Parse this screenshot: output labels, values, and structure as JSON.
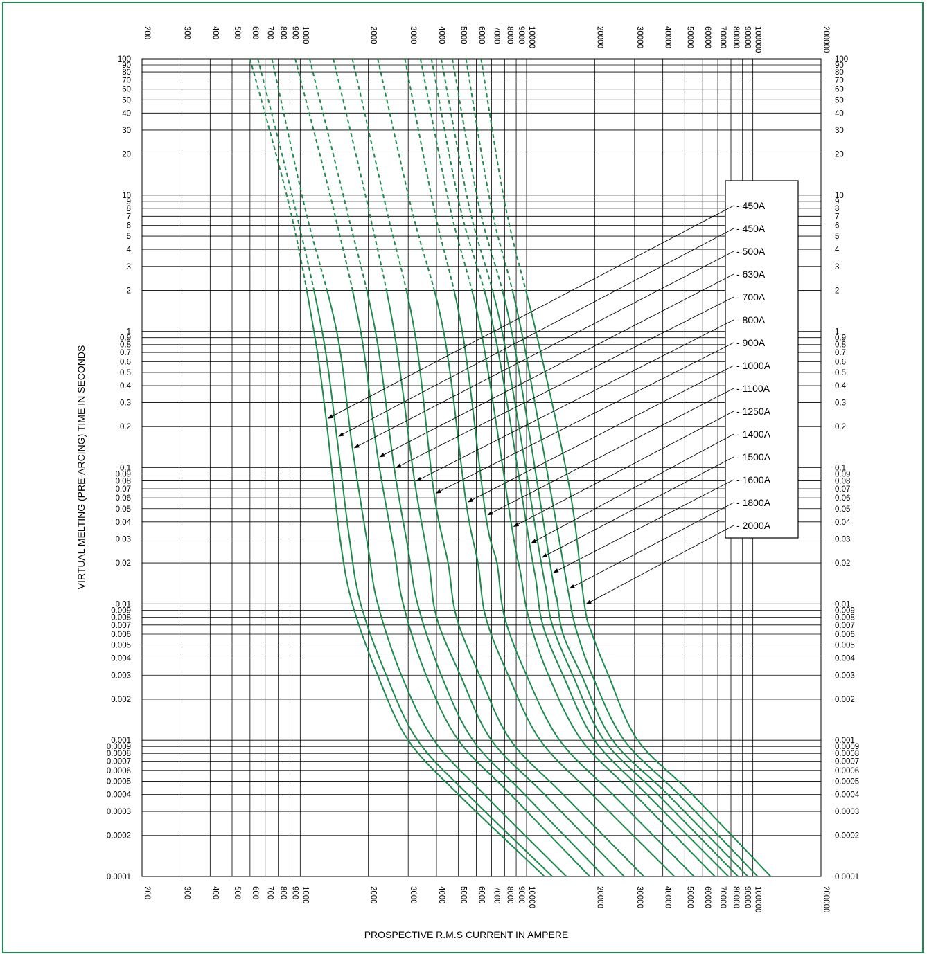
{
  "chart_data": {
    "type": "line",
    "title": "",
    "xlabel": "PROSPECTIVE R.M.S CURRENT IN AMPERE",
    "ylabel": "VIRTUAL MELTING (PRE-ARCING) TIME IN SECONDS",
    "x_scale": "log",
    "y_scale": "log",
    "xlim": [
      200,
      200000
    ],
    "ylim": [
      0.0001,
      100
    ],
    "grid": true,
    "legend_position": "right (boxed, with leader arrows to each curve)",
    "line_color": "#1e8a4e",
    "x_tick_labels": [
      "200",
      "300",
      "400",
      "500",
      "600",
      "700",
      "800",
      "900",
      "1000",
      "2000",
      "3000",
      "4000",
      "5000",
      "6000",
      "7000",
      "8000",
      "9000",
      "10000",
      "20000",
      "30000",
      "40000",
      "50000",
      "60000",
      "70000",
      "80000",
      "90000",
      "100000",
      "200000"
    ],
    "y_tick_labels": [
      "100",
      "90",
      "80",
      "70",
      "60",
      "50",
      "40",
      "30",
      "20",
      "10",
      "9",
      "8",
      "7",
      "6",
      "5",
      "4",
      "3",
      "2",
      "1",
      "0.9",
      "0.8",
      "0.7",
      "0.6",
      "0.5",
      "0.4",
      "0.3",
      "0.2",
      "0.1",
      "0.09",
      "0.08",
      "0.07",
      "0.06",
      "0.05",
      "0.04",
      "0.03",
      "0.02",
      "0.01",
      "0.009",
      "0.008",
      "0.007",
      "0.006",
      "0.005",
      "0.004",
      "0.003",
      "0.002",
      "0.001",
      "0.0009",
      "0.0008",
      "0.0007",
      "0.0006",
      "0.0005",
      "0.0004",
      "0.0003",
      "0.0002",
      "0.0001"
    ],
    "note": "Segments above 2 s are drawn dashed",
    "series": [
      {
        "name": "450A",
        "arrow_at": [
          1300,
          0.23
        ],
        "points": [
          [
            600,
            100
          ],
          [
            900,
            8
          ],
          [
            1150,
            1
          ],
          [
            1300,
            0.23
          ],
          [
            1500,
            0.03
          ],
          [
            1700,
            0.01
          ],
          [
            2200,
            0.003
          ],
          [
            3000,
            0.001
          ],
          [
            5000,
            0.0004
          ],
          [
            12000,
            0.0001
          ]
        ]
      },
      {
        "name": "450A",
        "arrow_at": [
          1450,
          0.17
        ],
        "points": [
          [
            650,
            100
          ],
          [
            950,
            8
          ],
          [
            1250,
            1
          ],
          [
            1450,
            0.17
          ],
          [
            1650,
            0.03
          ],
          [
            1850,
            0.01
          ],
          [
            2400,
            0.003
          ],
          [
            3300,
            0.001
          ],
          [
            5500,
            0.0004
          ],
          [
            13000,
            0.0001
          ]
        ]
      },
      {
        "name": "500A",
        "arrow_at": [
          1700,
          0.14
        ],
        "points": [
          [
            750,
            100
          ],
          [
            1050,
            8
          ],
          [
            1450,
            1
          ],
          [
            1700,
            0.14
          ],
          [
            2000,
            0.025
          ],
          [
            2200,
            0.01
          ],
          [
            2800,
            0.003
          ],
          [
            3900,
            0.001
          ],
          [
            6500,
            0.0004
          ],
          [
            15000,
            0.0001
          ]
        ]
      },
      {
        "name": "630A",
        "arrow_at": [
          2200,
          0.12
        ],
        "points": [
          [
            950,
            100
          ],
          [
            1400,
            8
          ],
          [
            1850,
            1
          ],
          [
            2200,
            0.12
          ],
          [
            2600,
            0.025
          ],
          [
            2850,
            0.01
          ],
          [
            3600,
            0.003
          ],
          [
            5000,
            0.001
          ],
          [
            8500,
            0.0004
          ],
          [
            19000,
            0.0001
          ]
        ]
      },
      {
        "name": "700A",
        "arrow_at": [
          2600,
          0.1
        ],
        "points": [
          [
            1100,
            100
          ],
          [
            1600,
            8
          ],
          [
            2150,
            1
          ],
          [
            2600,
            0.1
          ],
          [
            3000,
            0.025
          ],
          [
            3300,
            0.01
          ],
          [
            4200,
            0.003
          ],
          [
            5800,
            0.001
          ],
          [
            9800,
            0.0004
          ],
          [
            22000,
            0.0001
          ]
        ]
      },
      {
        "name": "800A",
        "arrow_at": [
          3200,
          0.08
        ],
        "points": [
          [
            1400,
            100
          ],
          [
            2000,
            8
          ],
          [
            2600,
            1
          ],
          [
            3200,
            0.08
          ],
          [
            3700,
            0.02
          ],
          [
            4000,
            0.008
          ],
          [
            5100,
            0.003
          ],
          [
            7000,
            0.001
          ],
          [
            12000,
            0.0004
          ],
          [
            27000,
            0.0001
          ]
        ]
      },
      {
        "name": "900A",
        "arrow_at": [
          3900,
          0.065
        ],
        "points": [
          [
            1700,
            100
          ],
          [
            2400,
            8
          ],
          [
            3200,
            1
          ],
          [
            3900,
            0.065
          ],
          [
            4500,
            0.02
          ],
          [
            4900,
            0.008
          ],
          [
            6200,
            0.003
          ],
          [
            8500,
            0.001
          ],
          [
            14500,
            0.0004
          ],
          [
            33000,
            0.0001
          ]
        ]
      },
      {
        "name": "1000A",
        "arrow_at": [
          5400,
          0.056
        ],
        "points": [
          [
            2200,
            100
          ],
          [
            3100,
            8
          ],
          [
            4300,
            1
          ],
          [
            5400,
            0.056
          ],
          [
            6100,
            0.02
          ],
          [
            6600,
            0.008
          ],
          [
            8300,
            0.003
          ],
          [
            11500,
            0.001
          ],
          [
            19500,
            0.0004
          ],
          [
            45000,
            0.0001
          ]
        ]
      },
      {
        "name": "1100A",
        "arrow_at": [
          6600,
          0.045
        ],
        "points": [
          [
            2900,
            100
          ],
          [
            3900,
            8
          ],
          [
            5200,
            1
          ],
          [
            6600,
            0.045
          ],
          [
            7400,
            0.02
          ],
          [
            8000,
            0.008
          ],
          [
            10000,
            0.003
          ],
          [
            14000,
            0.001
          ],
          [
            24000,
            0.0004
          ],
          [
            55000,
            0.0001
          ]
        ]
      },
      {
        "name": "1250A",
        "arrow_at": [
          8600,
          0.037
        ],
        "points": [
          [
            3400,
            100
          ],
          [
            4600,
            8
          ],
          [
            6300,
            1
          ],
          [
            8600,
            0.037
          ],
          [
            9400,
            0.017
          ],
          [
            10200,
            0.008
          ],
          [
            12500,
            0.003
          ],
          [
            17500,
            0.001
          ],
          [
            30000,
            0.0004
          ],
          [
            68000,
            0.0001
          ]
        ]
      },
      {
        "name": "1400A",
        "arrow_at": [
          10300,
          0.028
        ],
        "points": [
          [
            3800,
            100
          ],
          [
            5100,
            8
          ],
          [
            7200,
            1
          ],
          [
            10300,
            0.028
          ],
          [
            11000,
            0.015
          ],
          [
            11800,
            0.007
          ],
          [
            14500,
            0.003
          ],
          [
            20000,
            0.001
          ],
          [
            34000,
            0.0004
          ],
          [
            78000,
            0.0001
          ]
        ]
      },
      {
        "name": "1500A",
        "arrow_at": [
          11500,
          0.022
        ],
        "points": [
          [
            4200,
            100
          ],
          [
            5600,
            8
          ],
          [
            7800,
            1
          ],
          [
            11500,
            0.022
          ],
          [
            12200,
            0.013
          ],
          [
            13000,
            0.007
          ],
          [
            16000,
            0.003
          ],
          [
            22000,
            0.001
          ],
          [
            38000,
            0.0004
          ],
          [
            86000,
            0.0001
          ]
        ]
      },
      {
        "name": "1600A",
        "arrow_at": [
          12900,
          0.017
        ],
        "points": [
          [
            4700,
            100
          ],
          [
            6200,
            8
          ],
          [
            8600,
            1
          ],
          [
            12900,
            0.017
          ],
          [
            13600,
            0.011
          ],
          [
            14500,
            0.006
          ],
          [
            17500,
            0.003
          ],
          [
            24000,
            0.001
          ],
          [
            42000,
            0.0004
          ],
          [
            95000,
            0.0001
          ]
        ]
      },
      {
        "name": "1800A",
        "arrow_at": [
          15200,
          0.013
        ],
        "points": [
          [
            5400,
            100
          ],
          [
            7000,
            8
          ],
          [
            9500,
            1
          ],
          [
            15200,
            0.013
          ],
          [
            15800,
            0.009
          ],
          [
            16800,
            0.006
          ],
          [
            19500,
            0.003
          ],
          [
            27000,
            0.001
          ],
          [
            47000,
            0.0004
          ],
          [
            105000,
            0.0001
          ]
        ]
      },
      {
        "name": "2000A",
        "arrow_at": [
          18000,
          0.01
        ],
        "points": [
          [
            6300,
            100
          ],
          [
            8100,
            8
          ],
          [
            11000,
            1
          ],
          [
            15500,
            0.07
          ],
          [
            18000,
            0.01
          ],
          [
            19500,
            0.006
          ],
          [
            23000,
            0.003
          ],
          [
            31000,
            0.001
          ],
          [
            54000,
            0.0004
          ],
          [
            120000,
            0.0001
          ]
        ]
      }
    ]
  }
}
